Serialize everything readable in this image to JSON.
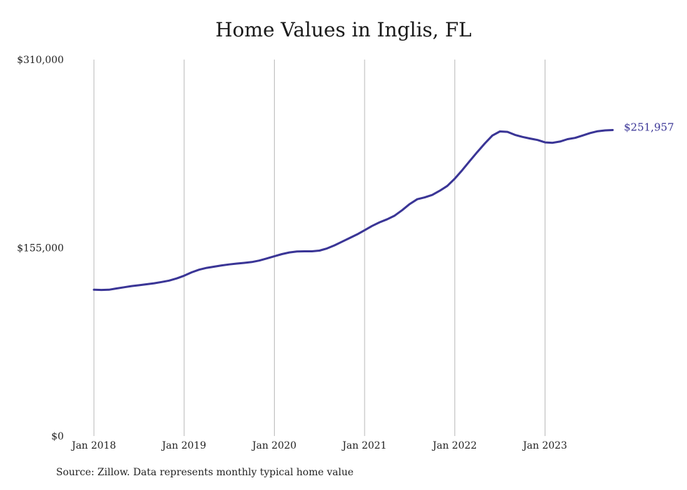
{
  "chart_data": {
    "type": "line",
    "title": "Home Values in Inglis, FL",
    "xlabel": "",
    "ylabel": "",
    "ylim": [
      0,
      310000
    ],
    "y_ticks": [
      {
        "value": 0,
        "label": "$0"
      },
      {
        "value": 155000,
        "label": "$155,000"
      },
      {
        "value": 310000,
        "label": "$310,000"
      }
    ],
    "x_ticks": [
      {
        "value": 2018.0,
        "label": "Jan 2018"
      },
      {
        "value": 2019.0,
        "label": "Jan 2019"
      },
      {
        "value": 2020.0,
        "label": "Jan 2020"
      },
      {
        "value": 2021.0,
        "label": "Jan 2021"
      },
      {
        "value": 2022.0,
        "label": "Jan 2022"
      },
      {
        "value": 2023.0,
        "label": "Jan 2023"
      }
    ],
    "xlim": [
      2018.0,
      2023.75
    ],
    "grid": "vertical",
    "line_color": "#3a3596",
    "series": [
      {
        "end_label": "$251,957",
        "points": [
          [
            2018.0,
            120500
          ],
          [
            2018.0833,
            120300
          ],
          [
            2018.1667,
            120500
          ],
          [
            2018.25,
            121500
          ],
          [
            2018.3333,
            122500
          ],
          [
            2018.4167,
            123500
          ],
          [
            2018.5,
            124200
          ],
          [
            2018.5833,
            125000
          ],
          [
            2018.6667,
            125800
          ],
          [
            2018.75,
            126800
          ],
          [
            2018.8333,
            128000
          ],
          [
            2018.9167,
            129800
          ],
          [
            2019.0,
            132000
          ],
          [
            2019.0833,
            134800
          ],
          [
            2019.1667,
            137000
          ],
          [
            2019.25,
            138500
          ],
          [
            2019.3333,
            139500
          ],
          [
            2019.4167,
            140500
          ],
          [
            2019.5,
            141300
          ],
          [
            2019.5833,
            142000
          ],
          [
            2019.6667,
            142600
          ],
          [
            2019.75,
            143300
          ],
          [
            2019.8333,
            144500
          ],
          [
            2019.9167,
            146200
          ],
          [
            2020.0,
            148000
          ],
          [
            2020.0833,
            149800
          ],
          [
            2020.1667,
            151200
          ],
          [
            2020.25,
            152000
          ],
          [
            2020.3333,
            152100
          ],
          [
            2020.4167,
            152100
          ],
          [
            2020.5,
            152700
          ],
          [
            2020.5833,
            154500
          ],
          [
            2020.6667,
            157000
          ],
          [
            2020.75,
            160000
          ],
          [
            2020.8333,
            163000
          ],
          [
            2020.9167,
            166000
          ],
          [
            2021.0,
            169500
          ],
          [
            2021.0833,
            173000
          ],
          [
            2021.1667,
            176000
          ],
          [
            2021.25,
            178500
          ],
          [
            2021.3333,
            181500
          ],
          [
            2021.4167,
            186000
          ],
          [
            2021.5,
            191000
          ],
          [
            2021.5833,
            195000
          ],
          [
            2021.6667,
            196500
          ],
          [
            2021.75,
            198500
          ],
          [
            2021.8333,
            202000
          ],
          [
            2021.9167,
            206000
          ],
          [
            2022.0,
            212000
          ],
          [
            2022.0833,
            219000
          ],
          [
            2022.1667,
            226500
          ],
          [
            2022.25,
            234000
          ],
          [
            2022.3333,
            241000
          ],
          [
            2022.4167,
            247500
          ],
          [
            2022.5,
            250800
          ],
          [
            2022.5833,
            250500
          ],
          [
            2022.6667,
            248000
          ],
          [
            2022.75,
            246300
          ],
          [
            2022.8333,
            245000
          ],
          [
            2022.9167,
            243800
          ],
          [
            2023.0,
            241800
          ],
          [
            2023.0833,
            241500
          ],
          [
            2023.1667,
            242500
          ],
          [
            2023.25,
            244500
          ],
          [
            2023.3333,
            245500
          ],
          [
            2023.4167,
            247500
          ],
          [
            2023.5,
            249500
          ],
          [
            2023.5833,
            251000
          ],
          [
            2023.6667,
            251700
          ],
          [
            2023.75,
            251957
          ]
        ]
      }
    ]
  },
  "footer": {
    "source": "Source: Zillow. Data represents monthly typical home value"
  }
}
